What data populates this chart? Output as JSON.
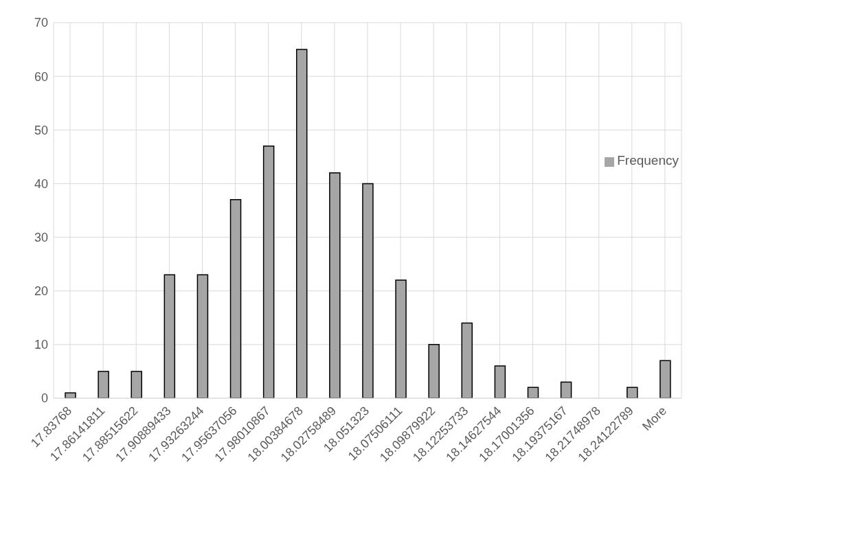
{
  "chart_data": {
    "type": "bar",
    "categories": [
      "17.83768",
      "17.86141811",
      "17.88515622",
      "17.90889433",
      "17.93263244",
      "17.95637056",
      "17.98010867",
      "18.00384678",
      "18.02758489",
      "18.051323",
      "18.07506111",
      "18.09879922",
      "18.12253733",
      "18.14627544",
      "18.17001356",
      "18.19375167",
      "18.21748978",
      "18.24122789",
      "More"
    ],
    "series": [
      {
        "name": "Frequency",
        "color": "#a6a6a6",
        "values": [
          1,
          5,
          5,
          23,
          23,
          37,
          47,
          65,
          42,
          40,
          22,
          10,
          14,
          6,
          2,
          3,
          0,
          2,
          7
        ]
      }
    ],
    "ylim": [
      0,
      70
    ],
    "yticks": [
      0,
      10,
      20,
      30,
      40,
      50,
      60,
      70
    ],
    "grid": true,
    "legend": "right"
  }
}
